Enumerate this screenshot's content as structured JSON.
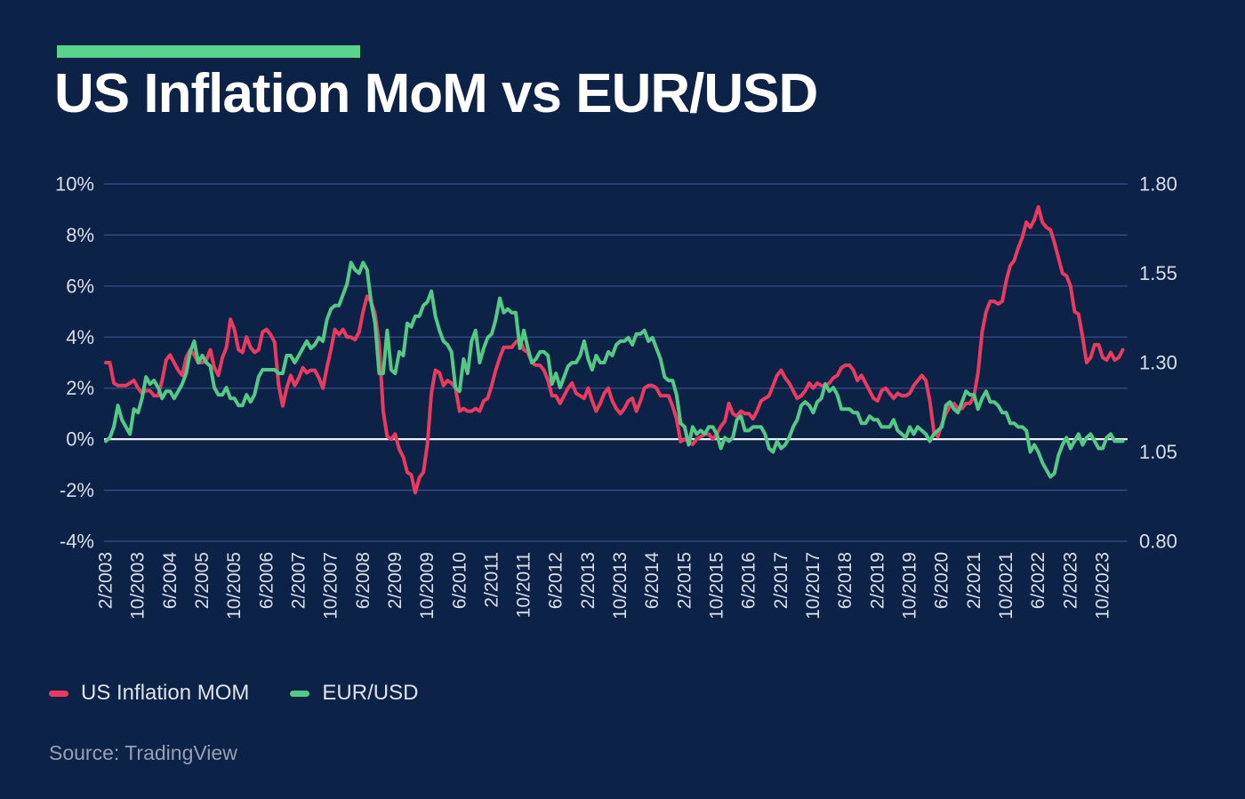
{
  "header": {
    "title": "US Inflation MoM vs EUR/USD"
  },
  "source": {
    "label": "Source: TradingView"
  },
  "colors": {
    "background": "#0d2247",
    "accent_bar": "#5bd38c",
    "grid": "#5e72bd",
    "zero_line": "#eef1f7",
    "inflation_line": "#e93a5f",
    "eurusd_line": "#55c886",
    "tick_text": "#d9dee8",
    "title_text": "#ffffff",
    "source_text": "#96a0b4"
  },
  "legend": [
    {
      "label": "US Inflation MOM",
      "color": "#e93a5f"
    },
    {
      "label": "EUR/USD",
      "color": "#55c886"
    }
  ],
  "chart_data": {
    "type": "line",
    "title": "US Inflation MoM vs EUR/USD",
    "x_start": "2/2003",
    "x_end": "3/2024",
    "x_frequency": "monthly",
    "grid": true,
    "legend_position": "bottom-left",
    "x_tick_every_months": 8,
    "x_tick_labels": [
      "2/2003",
      "10/2003",
      "6/2004",
      "2/2005",
      "10/2005",
      "6/2006",
      "2/2007",
      "10/2007",
      "6/2008",
      "2/2009",
      "10/2009",
      "6/2010",
      "2/2011",
      "10/2011",
      "6/2012",
      "2/2013",
      "10/2013",
      "6/2014",
      "2/2015",
      "10/2015",
      "6/2016",
      "2/2017",
      "10/2017",
      "6/2018",
      "2/2019",
      "10/2019",
      "6/2020",
      "2/2021",
      "10/2021",
      "6/2022",
      "2/2023",
      "10/2023"
    ],
    "left_axis": {
      "unit": "%",
      "range": [
        -4,
        10
      ],
      "tick_values": [
        10,
        8,
        6,
        4,
        2,
        0,
        -2,
        -4
      ],
      "ticks": [
        "10%",
        "8%",
        "6%",
        "4%",
        "2%",
        "0%",
        "-2%",
        "-4%"
      ]
    },
    "right_axis": {
      "range": [
        0.8,
        1.8
      ],
      "tick_values": [
        1.8,
        1.55,
        1.3,
        1.05,
        0.8
      ],
      "ticks": [
        "1.80",
        "1.55",
        "1.30",
        "1.05",
        "0.80"
      ]
    },
    "series": [
      {
        "name": "US Inflation MOM",
        "axis": "left",
        "color": "#e93a5f",
        "values": [
          3.0,
          3.0,
          2.2,
          2.1,
          2.1,
          2.1,
          2.2,
          2.3,
          2.0,
          1.8,
          1.9,
          1.9,
          1.7,
          1.7,
          2.3,
          3.1,
          3.3,
          3.0,
          2.7,
          2.5,
          3.2,
          3.5,
          3.3,
          3.0,
          3.0,
          3.1,
          3.5,
          2.8,
          2.5,
          3.2,
          3.6,
          4.7,
          4.3,
          3.5,
          3.4,
          4.0,
          3.6,
          3.4,
          3.5,
          4.2,
          4.3,
          4.1,
          3.8,
          2.1,
          1.3,
          2.0,
          2.5,
          2.1,
          2.4,
          2.8,
          2.6,
          2.7,
          2.7,
          2.4,
          2.0,
          2.8,
          3.5,
          4.3,
          4.1,
          4.3,
          4.0,
          4.0,
          3.9,
          4.2,
          5.0,
          5.6,
          5.4,
          4.9,
          3.7,
          1.1,
          0.1,
          0.0,
          0.2,
          -0.4,
          -0.7,
          -1.3,
          -1.4,
          -2.1,
          -1.5,
          -1.3,
          -0.2,
          1.8,
          2.7,
          2.6,
          2.1,
          2.3,
          2.2,
          2.0,
          1.1,
          1.2,
          1.1,
          1.1,
          1.2,
          1.1,
          1.5,
          1.6,
          2.1,
          2.7,
          3.2,
          3.6,
          3.6,
          3.6,
          3.8,
          3.9,
          3.5,
          3.4,
          3.0,
          2.9,
          2.9,
          2.7,
          2.3,
          1.7,
          1.7,
          1.4,
          1.7,
          2.0,
          2.2,
          1.8,
          1.7,
          1.6,
          2.0,
          1.5,
          1.1,
          1.4,
          1.8,
          2.0,
          1.5,
          1.2,
          1.0,
          1.2,
          1.5,
          1.6,
          1.1,
          1.5,
          2.0,
          2.1,
          2.1,
          2.0,
          1.7,
          1.7,
          1.7,
          1.3,
          0.8,
          -0.1,
          0.0,
          -0.1,
          -0.2,
          0.0,
          0.1,
          0.2,
          0.2,
          0.0,
          0.2,
          0.5,
          0.7,
          1.4,
          1.0,
          0.9,
          1.1,
          1.0,
          1.0,
          0.8,
          1.1,
          1.5,
          1.6,
          1.7,
          2.1,
          2.5,
          2.7,
          2.4,
          2.2,
          1.9,
          1.6,
          1.7,
          1.9,
          2.2,
          2.0,
          2.2,
          2.1,
          2.1,
          2.2,
          2.4,
          2.5,
          2.8,
          2.9,
          2.9,
          2.7,
          2.3,
          2.5,
          2.2,
          1.9,
          1.6,
          1.5,
          1.9,
          2.0,
          1.8,
          1.6,
          1.8,
          1.7,
          1.7,
          1.8,
          2.1,
          2.3,
          2.5,
          2.3,
          1.5,
          0.3,
          0.1,
          0.6,
          1.0,
          1.3,
          1.4,
          1.2,
          1.2,
          1.4,
          1.4,
          1.7,
          2.6,
          4.2,
          5.0,
          5.4,
          5.4,
          5.3,
          5.4,
          6.2,
          6.8,
          7.0,
          7.5,
          7.9,
          8.5,
          8.3,
          8.6,
          9.1,
          8.5,
          8.3,
          8.2,
          7.7,
          7.1,
          6.5,
          6.4,
          6.0,
          5.0,
          4.9,
          4.0,
          3.0,
          3.2,
          3.7,
          3.7,
          3.2,
          3.1,
          3.4,
          3.1,
          3.2,
          3.5
        ]
      },
      {
        "name": "EUR/USD",
        "axis": "right",
        "color": "#55c886",
        "values": [
          1.08,
          1.09,
          1.12,
          1.18,
          1.14,
          1.12,
          1.1,
          1.17,
          1.16,
          1.2,
          1.26,
          1.24,
          1.25,
          1.23,
          1.2,
          1.22,
          1.22,
          1.2,
          1.22,
          1.24,
          1.27,
          1.33,
          1.36,
          1.3,
          1.32,
          1.3,
          1.29,
          1.23,
          1.21,
          1.21,
          1.23,
          1.2,
          1.2,
          1.18,
          1.18,
          1.21,
          1.19,
          1.21,
          1.26,
          1.28,
          1.28,
          1.28,
          1.28,
          1.27,
          1.27,
          1.32,
          1.32,
          1.3,
          1.32,
          1.34,
          1.36,
          1.34,
          1.35,
          1.37,
          1.36,
          1.42,
          1.45,
          1.46,
          1.46,
          1.49,
          1.52,
          1.58,
          1.56,
          1.55,
          1.58,
          1.56,
          1.47,
          1.41,
          1.27,
          1.27,
          1.39,
          1.28,
          1.27,
          1.33,
          1.32,
          1.41,
          1.4,
          1.43,
          1.43,
          1.46,
          1.47,
          1.5,
          1.43,
          1.39,
          1.36,
          1.35,
          1.33,
          1.23,
          1.22,
          1.31,
          1.27,
          1.36,
          1.39,
          1.3,
          1.34,
          1.37,
          1.38,
          1.42,
          1.48,
          1.44,
          1.45,
          1.44,
          1.44,
          1.34,
          1.39,
          1.34,
          1.3,
          1.31,
          1.33,
          1.33,
          1.32,
          1.24,
          1.27,
          1.23,
          1.26,
          1.29,
          1.3,
          1.3,
          1.32,
          1.36,
          1.31,
          1.28,
          1.32,
          1.3,
          1.3,
          1.33,
          1.32,
          1.35,
          1.36,
          1.36,
          1.37,
          1.35,
          1.38,
          1.38,
          1.39,
          1.36,
          1.37,
          1.34,
          1.31,
          1.26,
          1.25,
          1.25,
          1.21,
          1.13,
          1.12,
          1.07,
          1.12,
          1.1,
          1.11,
          1.1,
          1.12,
          1.12,
          1.1,
          1.06,
          1.09,
          1.08,
          1.09,
          1.14,
          1.15,
          1.11,
          1.11,
          1.12,
          1.12,
          1.12,
          1.1,
          1.06,
          1.05,
          1.08,
          1.06,
          1.07,
          1.09,
          1.12,
          1.14,
          1.18,
          1.19,
          1.18,
          1.16,
          1.19,
          1.2,
          1.24,
          1.22,
          1.23,
          1.21,
          1.17,
          1.17,
          1.17,
          1.16,
          1.16,
          1.13,
          1.13,
          1.15,
          1.14,
          1.14,
          1.12,
          1.12,
          1.12,
          1.14,
          1.11,
          1.1,
          1.09,
          1.12,
          1.1,
          1.12,
          1.11,
          1.1,
          1.08,
          1.1,
          1.11,
          1.12,
          1.18,
          1.19,
          1.17,
          1.16,
          1.19,
          1.22,
          1.21,
          1.21,
          1.17,
          1.2,
          1.22,
          1.19,
          1.19,
          1.18,
          1.16,
          1.16,
          1.13,
          1.13,
          1.12,
          1.12,
          1.11,
          1.05,
          1.07,
          1.05,
          1.02,
          1.0,
          0.98,
          0.99,
          1.04,
          1.07,
          1.09,
          1.06,
          1.08,
          1.1,
          1.07,
          1.09,
          1.1,
          1.08,
          1.06,
          1.06,
          1.09,
          1.1,
          1.08,
          1.08,
          1.08
        ]
      }
    ]
  }
}
